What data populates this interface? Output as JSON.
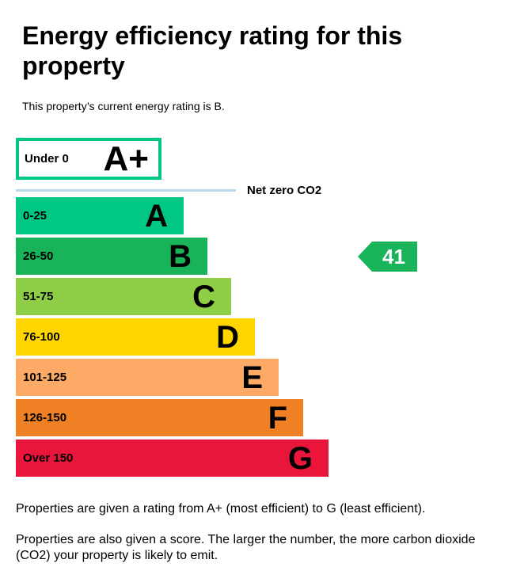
{
  "header": {
    "title": "Energy efficiency rating for this property",
    "subtitle": "This property’s current energy rating is B."
  },
  "chart_data": {
    "type": "bar",
    "title": "Energy efficiency rating for this property",
    "net_zero_label": "Net zero CO2",
    "net_zero_line_color": "#b9d9eb",
    "bands": [
      {
        "range": "Under 0",
        "letter": "A+",
        "min": null,
        "max": 0,
        "fill": "#ffffff",
        "border": "#00c781"
      },
      {
        "range": "0-25",
        "letter": "A",
        "min": 0,
        "max": 25,
        "fill": "#00c781"
      },
      {
        "range": "26-50",
        "letter": "B",
        "min": 26,
        "max": 50,
        "fill": "#19b459"
      },
      {
        "range": "51-75",
        "letter": "C",
        "min": 51,
        "max": 75,
        "fill": "#8dce46"
      },
      {
        "range": "76-100",
        "letter": "D",
        "min": 76,
        "max": 100,
        "fill": "#ffd500"
      },
      {
        "range": "101-125",
        "letter": "E",
        "min": 101,
        "max": 125,
        "fill": "#fcaa65"
      },
      {
        "range": "126-150",
        "letter": "F",
        "min": 126,
        "max": 150,
        "fill": "#ef8023"
      },
      {
        "range": "Over 150",
        "letter": "G",
        "min": 150,
        "max": null,
        "fill": "#e9153b"
      }
    ],
    "current": {
      "score": "41",
      "rating": "B",
      "color": "#19b459"
    },
    "legend_position": "none",
    "grid": false
  },
  "footer": {
    "para1": "Properties are given a rating from A+ (most efficient) to G (least efficient).",
    "para2": "Properties are also given a score. The larger the number, the more carbon dioxide (CO2) your property is likely to emit."
  }
}
